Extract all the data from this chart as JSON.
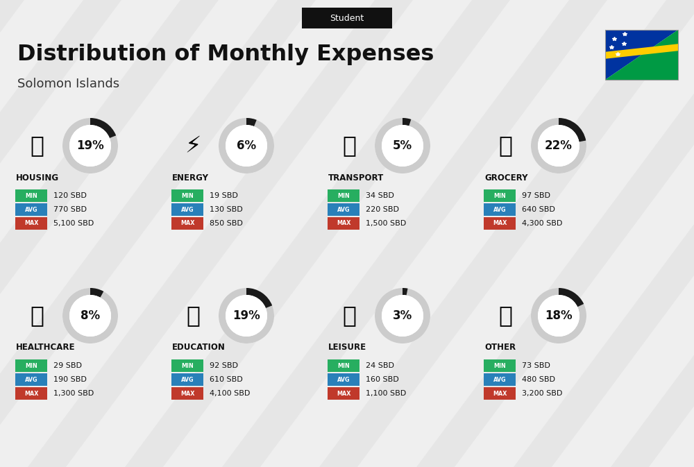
{
  "title": "Distribution of Monthly Expenses",
  "subtitle": "Solomon Islands",
  "tag": "Student",
  "bg_color": "#efefef",
  "categories": [
    {
      "name": "HOUSING",
      "pct": 19,
      "min": "120 SBD",
      "avg": "770 SBD",
      "max": "5,100 SBD",
      "row": 0,
      "col": 0
    },
    {
      "name": "ENERGY",
      "pct": 6,
      "min": "19 SBD",
      "avg": "130 SBD",
      "max": "850 SBD",
      "row": 0,
      "col": 1
    },
    {
      "name": "TRANSPORT",
      "pct": 5,
      "min": "34 SBD",
      "avg": "220 SBD",
      "max": "1,500 SBD",
      "row": 0,
      "col": 2
    },
    {
      "name": "GROCERY",
      "pct": 22,
      "min": "97 SBD",
      "avg": "640 SBD",
      "max": "4,300 SBD",
      "row": 0,
      "col": 3
    },
    {
      "name": "HEALTHCARE",
      "pct": 8,
      "min": "29 SBD",
      "avg": "190 SBD",
      "max": "1,300 SBD",
      "row": 1,
      "col": 0
    },
    {
      "name": "EDUCATION",
      "pct": 19,
      "min": "92 SBD",
      "avg": "610 SBD",
      "max": "4,100 SBD",
      "row": 1,
      "col": 1
    },
    {
      "name": "LEISURE",
      "pct": 3,
      "min": "24 SBD",
      "avg": "160 SBD",
      "max": "1,100 SBD",
      "row": 1,
      "col": 2
    },
    {
      "name": "OTHER",
      "pct": 18,
      "min": "73 SBD",
      "avg": "480 SBD",
      "max": "3,200 SBD",
      "row": 1,
      "col": 3
    }
  ],
  "color_min": "#27ae60",
  "color_avg": "#2980b9",
  "color_max": "#c0392b",
  "flag_blue": "#0033A0",
  "flag_green": "#009A44",
  "flag_yellow": "#FFCD00"
}
